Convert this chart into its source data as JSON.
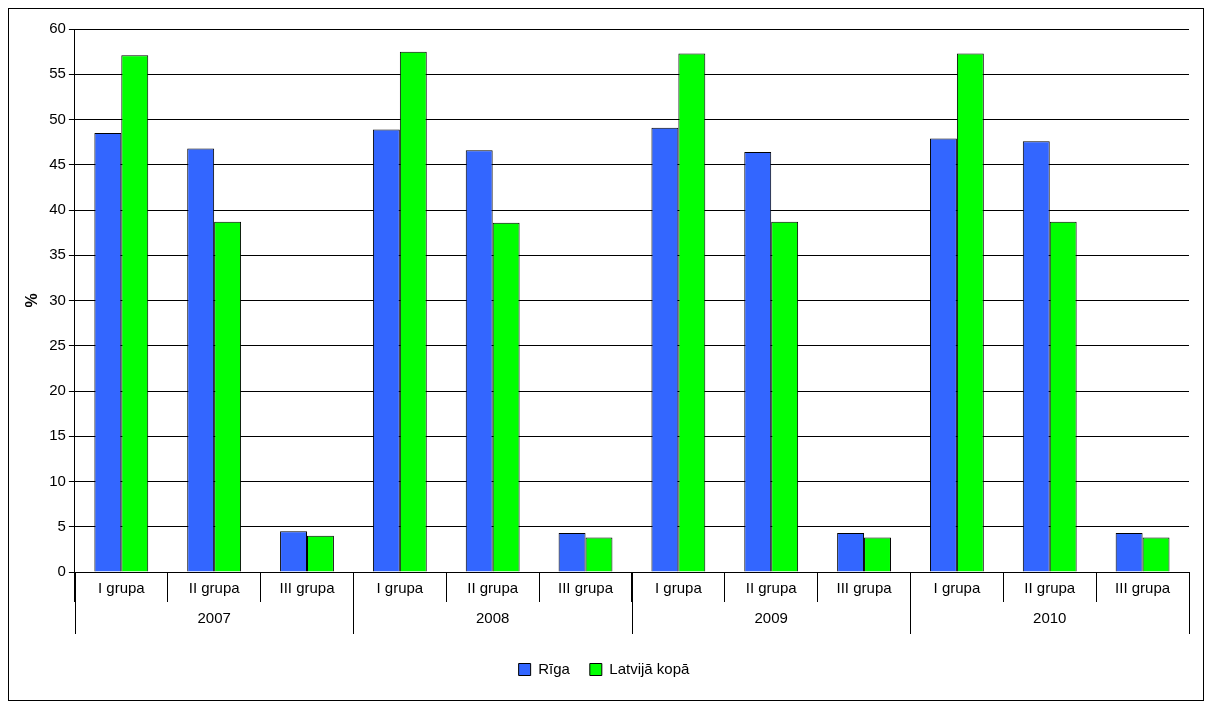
{
  "chart_data": {
    "type": "bar",
    "ylabel": "%",
    "categories": [
      "I grupa",
      "II grupa",
      "III grupa",
      "I grupa",
      "II grupa",
      "III grupa",
      "I grupa",
      "II grupa",
      "III grupa",
      "I grupa",
      "II grupa",
      "III grupa"
    ],
    "series": [
      {
        "name": "Rīga",
        "color": "#3366ff",
        "values": [
          48.5,
          46.8,
          4.5,
          48.9,
          46.6,
          4.3,
          49.1,
          46.4,
          4.3,
          47.9,
          47.6,
          4.3
        ]
      },
      {
        "name": "Latvijā kopā",
        "color": "#00ff00",
        "values": [
          57.1,
          38.7,
          4.0,
          57.5,
          38.6,
          3.8,
          57.3,
          38.7,
          3.8,
          57.3,
          38.7,
          3.8
        ]
      }
    ],
    "annotations": [
      "2007",
      "2008",
      "2009",
      "2010"
    ],
    "ylim": [
      0,
      60
    ],
    "yticks": [
      0,
      5,
      10,
      15,
      20,
      25,
      30,
      35,
      40,
      45,
      50,
      55,
      60
    ],
    "grid": "y",
    "legend": "bottom"
  }
}
